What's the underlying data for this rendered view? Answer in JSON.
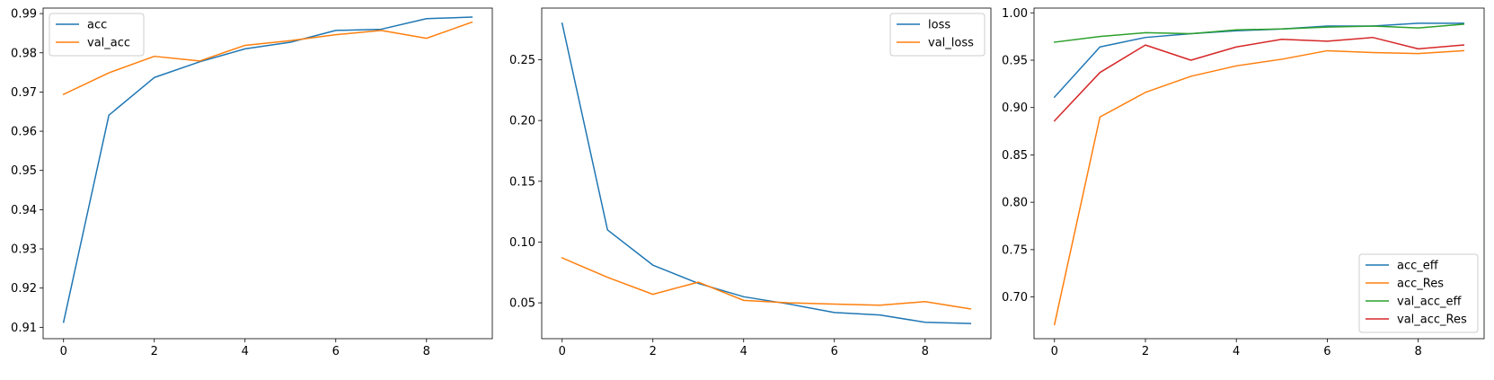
{
  "chart_data": [
    {
      "type": "line",
      "title": "",
      "xlabel": "",
      "ylabel": "",
      "xlim": [
        -0.45,
        9.45
      ],
      "ylim": [
        0.9071,
        0.9914
      ],
      "xticks": [
        0,
        2,
        4,
        6,
        8
      ],
      "xtick_labels": [
        "0",
        "2",
        "4",
        "6",
        "8"
      ],
      "yticks": [
        0.91,
        0.92,
        0.93,
        0.94,
        0.95,
        0.96,
        0.97,
        0.98,
        0.99
      ],
      "ytick_labels": [
        "0.91",
        "0.92",
        "0.93",
        "0.94",
        "0.95",
        "0.96",
        "0.97",
        "0.98",
        "0.99"
      ],
      "grid": false,
      "legend": {
        "position": "upper-left",
        "entries": [
          "acc",
          "val_acc"
        ]
      },
      "x": [
        0,
        1,
        2,
        3,
        4,
        5,
        6,
        7,
        8,
        9
      ],
      "series": [
        {
          "name": "acc",
          "color": "#1f77b4",
          "values": [
            0.9113,
            0.9641,
            0.9737,
            0.9777,
            0.981,
            0.9827,
            0.9857,
            0.986,
            0.9887,
            0.9891
          ]
        },
        {
          "name": "val_acc",
          "color": "#ff7f0e",
          "values": [
            0.9694,
            0.9749,
            0.9791,
            0.9779,
            0.9819,
            0.9831,
            0.9846,
            0.9857,
            0.9837,
            0.9878
          ]
        }
      ]
    },
    {
      "type": "line",
      "title": "",
      "xlabel": "",
      "ylabel": "",
      "xlim": [
        -0.45,
        9.45
      ],
      "ylim": [
        0.0205,
        0.2925
      ],
      "xticks": [
        0,
        2,
        4,
        6,
        8
      ],
      "xtick_labels": [
        "0",
        "2",
        "4",
        "6",
        "8"
      ],
      "yticks": [
        0.05,
        0.1,
        0.15,
        0.2,
        0.25
      ],
      "ytick_labels": [
        "0.05",
        "0.10",
        "0.15",
        "0.20",
        "0.25"
      ],
      "grid": false,
      "legend": {
        "position": "upper-right",
        "entries": [
          "loss",
          "val_loss"
        ]
      },
      "x": [
        0,
        1,
        2,
        3,
        4,
        5,
        6,
        7,
        8,
        9
      ],
      "series": [
        {
          "name": "loss",
          "color": "#1f77b4",
          "values": [
            0.28,
            0.11,
            0.081,
            0.066,
            0.055,
            0.049,
            0.042,
            0.04,
            0.034,
            0.033
          ]
        },
        {
          "name": "val_loss",
          "color": "#ff7f0e",
          "values": [
            0.087,
            0.071,
            0.057,
            0.067,
            0.052,
            0.05,
            0.049,
            0.048,
            0.051,
            0.045
          ]
        }
      ]
    },
    {
      "type": "line",
      "title": "",
      "xlabel": "",
      "ylabel": "",
      "xlim": [
        -0.45,
        9.45
      ],
      "ylim": [
        0.656,
        1.005
      ],
      "xticks": [
        0,
        2,
        4,
        6,
        8
      ],
      "xtick_labels": [
        "0",
        "2",
        "4",
        "6",
        "8"
      ],
      "yticks": [
        0.7,
        0.75,
        0.8,
        0.85,
        0.9,
        0.95,
        1.0
      ],
      "ytick_labels": [
        "0.70",
        "0.75",
        "0.80",
        "0.85",
        "0.90",
        "0.95",
        "1.00"
      ],
      "grid": false,
      "legend": {
        "position": "lower-right",
        "entries": [
          "acc_eff",
          "acc_Res",
          "val_acc_eff",
          "val_acc_Res"
        ]
      },
      "x": [
        0,
        1,
        2,
        3,
        4,
        5,
        6,
        7,
        8,
        9
      ],
      "series": [
        {
          "name": "acc_eff",
          "color": "#1f77b4",
          "values": [
            0.911,
            0.964,
            0.974,
            0.978,
            0.981,
            0.983,
            0.986,
            0.986,
            0.989,
            0.989
          ]
        },
        {
          "name": "acc_Res",
          "color": "#ff7f0e",
          "values": [
            0.671,
            0.89,
            0.916,
            0.933,
            0.944,
            0.951,
            0.96,
            0.958,
            0.957,
            0.96
          ]
        },
        {
          "name": "val_acc_eff",
          "color": "#2ca02c",
          "values": [
            0.969,
            0.975,
            0.979,
            0.978,
            0.982,
            0.983,
            0.985,
            0.986,
            0.984,
            0.988
          ]
        },
        {
          "name": "val_acc_Res",
          "color": "#d62728",
          "values": [
            0.886,
            0.937,
            0.966,
            0.95,
            0.964,
            0.972,
            0.97,
            0.974,
            0.962,
            0.966
          ]
        }
      ]
    }
  ]
}
